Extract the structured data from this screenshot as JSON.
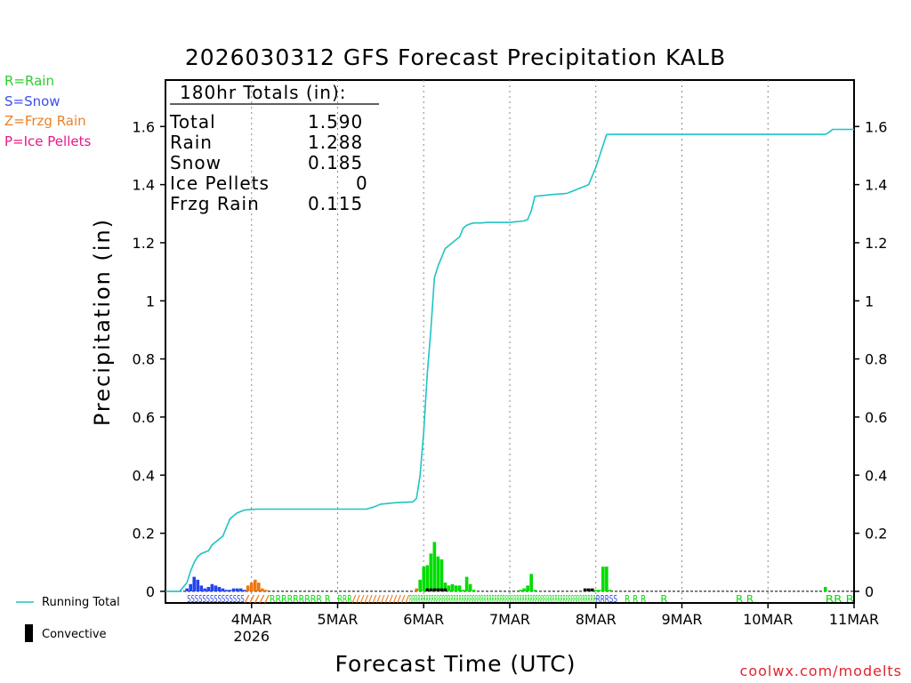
{
  "title": "2026030312 GFS Forecast Precipitation KALB",
  "legend": [
    {
      "label": "R=Rain",
      "color": "#2ecc2e"
    },
    {
      "label": "S=Snow",
      "color": "#3b4ff0"
    },
    {
      "label": "Z=Frzg Rain",
      "color": "#e8812a"
    },
    {
      "label": "P=Ice Pellets",
      "color": "#e8188a"
    }
  ],
  "totals": {
    "header": "180hr Totals (in):",
    "rows": [
      {
        "label": "Total",
        "value": "1.590"
      },
      {
        "label": "Rain",
        "value": "1.288"
      },
      {
        "label": "Snow",
        "value": "0.185"
      },
      {
        "label": "Ice Pellets",
        "value": "0"
      },
      {
        "label": "Frzg Rain",
        "value": "0.115"
      }
    ]
  },
  "bottom_legend": {
    "running_total": "Running Total",
    "convective": "Convective"
  },
  "credit": "coolwx.com/modelts",
  "colors": {
    "running_total": "#1fc4c4",
    "rain": "#00dd00",
    "snow": "#2244ee",
    "frzg": "#ee7711",
    "ice": "#e8188a",
    "convective": "#000000"
  },
  "chart_data": {
    "type": "bar",
    "title": "2026030312 GFS Forecast Precipitation KALB",
    "xlabel": "Forecast Time (UTC)",
    "ylabel": "Precipitation (in)",
    "ylim": [
      -0.04,
      1.76
    ],
    "xlim": [
      -12,
      180
    ],
    "yticks": [
      0,
      0.2,
      0.4,
      0.6,
      0.8,
      1,
      1.2,
      1.4,
      1.6
    ],
    "yticklabels": [
      "0",
      "0.2",
      "0.4",
      "0.6",
      "0.8",
      "1",
      "1.2",
      "1.4",
      "1.6"
    ],
    "xticks": [
      {
        "hour": 12,
        "label": "4MAR",
        "sublabel": "2026"
      },
      {
        "hour": 36,
        "label": "5MAR"
      },
      {
        "hour": 60,
        "label": "6MAR"
      },
      {
        "hour": 84,
        "label": "7MAR"
      },
      {
        "hour": 108,
        "label": "8MAR"
      },
      {
        "hour": 132,
        "label": "9MAR"
      },
      {
        "hour": 156,
        "label": "10MAR"
      },
      {
        "hour": 180,
        "label": "11MAR"
      }
    ],
    "running_total": {
      "name": "Running Total",
      "x": [
        -12,
        -8,
        -6,
        -5,
        -4,
        -3,
        -2,
        0,
        1,
        2,
        3,
        4,
        5,
        6,
        8,
        10,
        12,
        14,
        20,
        30,
        38,
        44,
        46,
        48,
        52,
        57,
        58,
        59,
        60,
        61,
        62,
        63,
        64,
        65,
        66,
        68,
        70,
        71,
        72,
        73,
        74,
        76,
        78,
        80,
        84,
        88,
        89,
        90,
        91,
        96,
        100,
        102,
        105,
        106,
        108,
        111,
        112,
        114,
        120,
        130,
        150,
        172,
        173,
        174,
        180
      ],
      "y": [
        0,
        0,
        0.03,
        0.07,
        0.1,
        0.12,
        0.13,
        0.14,
        0.16,
        0.17,
        0.18,
        0.19,
        0.22,
        0.25,
        0.27,
        0.28,
        0.282,
        0.283,
        0.283,
        0.283,
        0.283,
        0.283,
        0.29,
        0.3,
        0.305,
        0.308,
        0.32,
        0.4,
        0.55,
        0.75,
        0.9,
        1.08,
        1.12,
        1.15,
        1.18,
        1.2,
        1.22,
        1.25,
        1.26,
        1.265,
        1.268,
        1.268,
        1.27,
        1.27,
        1.27,
        1.275,
        1.28,
        1.31,
        1.36,
        1.366,
        1.37,
        1.38,
        1.395,
        1.4,
        1.46,
        1.572,
        1.573,
        1.573,
        1.573,
        1.573,
        1.573,
        1.573,
        1.58,
        1.59,
        1.59
      ]
    },
    "series": [
      {
        "name": "Snow",
        "x": [
          -6,
          -5,
          -4,
          -3,
          -2,
          -1,
          0,
          1,
          2,
          3,
          4,
          5,
          6,
          7,
          8,
          9,
          10
        ],
        "values": [
          0.01,
          0.025,
          0.05,
          0.04,
          0.02,
          0.01,
          0.015,
          0.025,
          0.02,
          0.015,
          0.01,
          0.005,
          0.005,
          0.01,
          0.01,
          0.01,
          0.005
        ]
      },
      {
        "name": "Frzg Rain",
        "x": [
          11,
          12,
          13,
          14,
          15,
          16,
          58
        ],
        "values": [
          0.02,
          0.03,
          0.04,
          0.03,
          0.01,
          0.005,
          0.01
        ]
      },
      {
        "name": "Rain",
        "x": [
          59,
          60,
          61,
          62,
          63,
          64,
          65,
          66,
          67,
          68,
          69,
          70,
          71,
          72,
          73,
          74,
          87,
          88,
          89,
          90,
          91,
          105,
          106,
          107,
          108,
          109,
          110,
          111,
          112,
          172
        ],
        "values": [
          0.04,
          0.085,
          0.09,
          0.13,
          0.17,
          0.12,
          0.11,
          0.03,
          0.02,
          0.025,
          0.02,
          0.02,
          0.005,
          0.05,
          0.025,
          0.005,
          0.005,
          0.01,
          0.02,
          0.06,
          0.005,
          0.005,
          0.005,
          0.005,
          0.005,
          0.005,
          0.085,
          0.085,
          0.005,
          0.015
        ]
      },
      {
        "name": "Convective",
        "x": [
          61,
          62,
          63,
          64,
          65,
          66,
          105,
          106,
          107
        ],
        "values": [
          0.01,
          0.01,
          0.01,
          0.01,
          0.01,
          0.01,
          0.01,
          0.01,
          0.01
        ]
      }
    ],
    "ptype_row": [
      {
        "start": -6,
        "end": 10,
        "type": "S",
        "label": "SSSSSSSSSSSSSSS"
      },
      {
        "start": 10,
        "end": 17,
        "type": "Z",
        "label": "/////"
      },
      {
        "start": 17,
        "end": 34,
        "type": "R",
        "label": "RRRRRRRRR  R"
      },
      {
        "start": 36,
        "end": 40,
        "type": "R",
        "label": "RRR"
      },
      {
        "start": 40,
        "end": 56,
        "type": "Z",
        "label": "//////////////"
      },
      {
        "start": 56,
        "end": 108,
        "type": "R",
        "label": "RRRRRRRRRRRRRRRRRRRRRRRRRRRRRRRRRRRRRRRRRRRRRRRRRRRRRRRRRRRRRRRRRRRR"
      },
      {
        "start": 108,
        "end": 114,
        "type": "S",
        "label": "RRRSS"
      },
      {
        "start": 116,
        "end": 122,
        "type": "R",
        "label": "R R    R"
      },
      {
        "start": 126,
        "end": 128,
        "type": "R",
        "label": "R"
      },
      {
        "start": 147,
        "end": 152,
        "type": "R",
        "label": "R   R"
      },
      {
        "start": 172,
        "end": 180,
        "type": "R",
        "label": "RR  R"
      }
    ]
  }
}
